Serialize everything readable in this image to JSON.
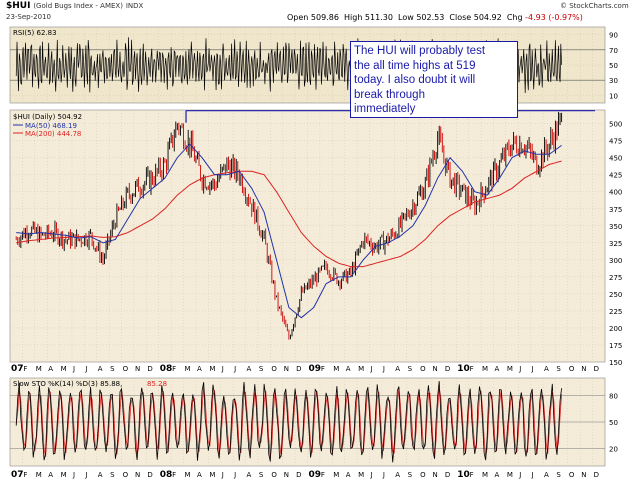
{
  "header": {
    "symbol": "$HUI",
    "name": "(Gold Bugs Index - AMEX)",
    "exchange": "INDX",
    "date": "23-Sep-2010",
    "open": "Open 509.86",
    "high": "High 511.30",
    "low": "Low 502.53",
    "close": "Close 504.92",
    "chg_label": "Chg",
    "chg": "-4.93 (-0.97%)",
    "copyright": "© StockCharts.com"
  },
  "colors": {
    "price": "#000000",
    "up_candle": "#000000",
    "down_candle": "#cc0000",
    "ma50": "#2233aa",
    "ma200": "#dd2222",
    "panel_bg": "#f4ecd9",
    "rsi_bg": "#efe6cc",
    "grid": "#c9bfa5",
    "annotation_border": "#1a1aaa",
    "resistance_line": "#1a1aaa",
    "sto_k": "#000000",
    "sto_d": "#dd2222"
  },
  "annotation": {
    "lines": [
      "The HUI will probably test",
      "the all time highs at 519",
      "today. I also doubt it will",
      "break through",
      "immediately"
    ]
  },
  "chart_data": [
    {
      "type": "line",
      "panel": "rsi",
      "title": "RSI(5) 62.83",
      "ylim": [
        0,
        100
      ],
      "y_ticks": [
        10,
        30,
        50,
        70,
        90
      ],
      "reference_levels": [
        30,
        70
      ],
      "last_value": 62.83
    },
    {
      "type": "line",
      "panel": "price",
      "title": "$HUI (Daily) 504.92",
      "ylim": [
        150,
        520
      ],
      "y_ticks": [
        150,
        175,
        200,
        225,
        250,
        275,
        300,
        325,
        350,
        375,
        400,
        425,
        450,
        475,
        500
      ],
      "x_label_format": "month initials, years 07 08 09 10",
      "x_ticks": [
        "07",
        "F",
        "M",
        "A",
        "M",
        "J",
        "J",
        "A",
        "S",
        "O",
        "N",
        "D",
        "08",
        "F",
        "M",
        "A",
        "M",
        "J",
        "J",
        "A",
        "S",
        "O",
        "N",
        "D",
        "09",
        "F",
        "M",
        "A",
        "M",
        "J",
        "J",
        "A",
        "S",
        "O",
        "N",
        "D",
        "10",
        "F",
        "M",
        "A",
        "M",
        "J",
        "J",
        "A",
        "S",
        "O",
        "N",
        "D"
      ],
      "resistance_level": 519,
      "series": [
        {
          "name": "$HUI (Daily) 504.92",
          "x": [
            "2007-01",
            "2007-02",
            "2007-03",
            "2007-04",
            "2007-05",
            "2007-06",
            "2007-07",
            "2007-08",
            "2007-09",
            "2007-10",
            "2007-11",
            "2007-12",
            "2008-01",
            "2008-02",
            "2008-03",
            "2008-04",
            "2008-05",
            "2008-06",
            "2008-07",
            "2008-08",
            "2008-09",
            "2008-10",
            "2008-11",
            "2008-12",
            "2009-01",
            "2009-02",
            "2009-03",
            "2009-04",
            "2009-05",
            "2009-06",
            "2009-07",
            "2009-08",
            "2009-09",
            "2009-10",
            "2009-11",
            "2009-12",
            "2010-01",
            "2010-02",
            "2010-03",
            "2010-04",
            "2010-05",
            "2010-06",
            "2010-07",
            "2010-08",
            "2010-09"
          ],
          "values": [
            330,
            345,
            335,
            340,
            330,
            330,
            335,
            300,
            360,
            395,
            410,
            420,
            440,
            500,
            470,
            420,
            410,
            440,
            425,
            380,
            330,
            240,
            185,
            250,
            270,
            290,
            270,
            280,
            330,
            320,
            330,
            350,
            380,
            410,
            480,
            420,
            400,
            380,
            410,
            440,
            470,
            470,
            440,
            470,
            505
          ]
        },
        {
          "name": "MA(50) 468.19",
          "values": [
            340,
            338,
            340,
            338,
            336,
            332,
            334,
            325,
            330,
            360,
            390,
            405,
            420,
            450,
            470,
            450,
            425,
            425,
            430,
            405,
            370,
            300,
            230,
            215,
            230,
            265,
            275,
            275,
            300,
            320,
            325,
            335,
            350,
            380,
            420,
            450,
            430,
            400,
            395,
            420,
            450,
            460,
            455,
            455,
            468
          ]
        },
        {
          "name": "MA(200) 444.78",
          "values": [
            325,
            328,
            330,
            332,
            333,
            334,
            335,
            333,
            334,
            340,
            350,
            360,
            375,
            395,
            410,
            420,
            425,
            428,
            430,
            430,
            425,
            400,
            370,
            340,
            320,
            305,
            295,
            290,
            290,
            295,
            300,
            305,
            315,
            330,
            350,
            365,
            375,
            385,
            390,
            395,
            405,
            420,
            430,
            440,
            445
          ]
        }
      ]
    },
    {
      "type": "line",
      "panel": "stochastic",
      "title": "Slow STO %K(14) %D(3) 85.88, 85.28",
      "k_label": "Slow STO %K(14) %D(3) 85.88,",
      "d_label": "85.28",
      "ylim": [
        0,
        100
      ],
      "y_ticks": [
        20,
        50,
        80
      ],
      "last_k": 85.88,
      "last_d": 85.28
    }
  ]
}
